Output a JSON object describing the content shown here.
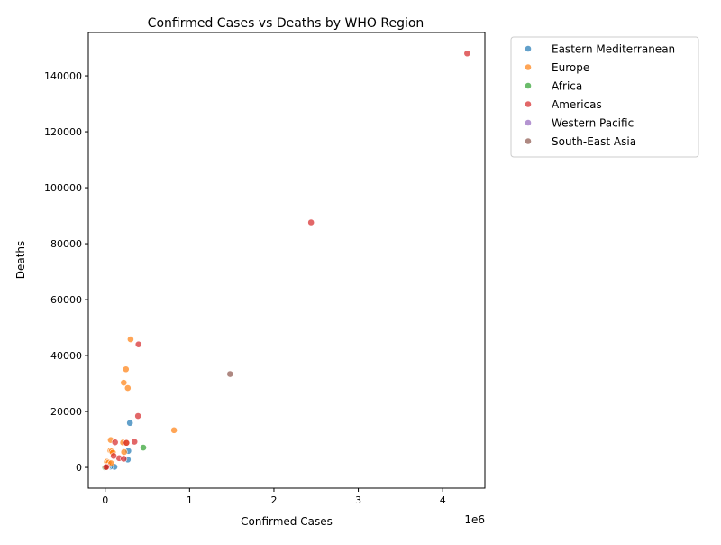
{
  "chart_data": {
    "type": "scatter",
    "title": "Confirmed Cases vs Deaths by WHO Region",
    "xlabel": "Confirmed Cases",
    "ylabel": "Deaths",
    "x_offset_label": "1e6",
    "xlim": [
      -200000,
      4500000
    ],
    "ylim": [
      -7400,
      155500
    ],
    "x_ticks": [
      0,
      1000000,
      2000000,
      3000000,
      4000000
    ],
    "x_tick_labels": [
      "0",
      "1",
      "2",
      "3",
      "4"
    ],
    "y_ticks": [
      0,
      20000,
      40000,
      60000,
      80000,
      100000,
      120000,
      140000
    ],
    "y_tick_labels": [
      "0",
      "20000",
      "40000",
      "60000",
      "80000",
      "100000",
      "120000",
      "140000"
    ],
    "grid": false,
    "legend_position": "outside-top-right",
    "series": [
      {
        "name": "Eastern Mediterranean",
        "color": "#1f77b4",
        "points": [
          [
            293000,
            15900
          ],
          [
            274000,
            5900
          ],
          [
            268000,
            2800
          ],
          [
            110000,
            200
          ],
          [
            60000,
            300
          ],
          [
            40000,
            500
          ],
          [
            20000,
            300
          ],
          [
            10000,
            100
          ],
          [
            5000,
            50
          ]
        ]
      },
      {
        "name": "Europe",
        "color": "#ff7f0e",
        "points": [
          [
            816000,
            13300
          ],
          [
            301000,
            45800
          ],
          [
            246000,
            35100
          ],
          [
            220000,
            30300
          ],
          [
            268000,
            28400
          ],
          [
            66000,
            9800
          ],
          [
            212000,
            8900
          ],
          [
            253000,
            8800
          ],
          [
            62000,
            6000
          ],
          [
            76000,
            5700
          ],
          [
            91000,
            5300
          ],
          [
            224000,
            5500
          ],
          [
            20000,
            2000
          ],
          [
            40000,
            1700
          ],
          [
            70000,
            1500
          ],
          [
            10000,
            200
          ],
          [
            5000,
            100
          ]
        ]
      },
      {
        "name": "Africa",
        "color": "#2ca02c",
        "points": [
          [
            452000,
            7100
          ],
          [
            5000,
            100
          ],
          [
            10000,
            200
          ],
          [
            2000,
            50
          ],
          [
            500,
            10
          ]
        ]
      },
      {
        "name": "Americas",
        "color": "#d62728",
        "points": [
          [
            4290000,
            148000
          ],
          [
            2440000,
            87600
          ],
          [
            395000,
            44000
          ],
          [
            389000,
            18400
          ],
          [
            347000,
            9200
          ],
          [
            117000,
            9000
          ],
          [
            252000,
            8800
          ],
          [
            165000,
            3300
          ],
          [
            220000,
            3100
          ],
          [
            100000,
            4100
          ],
          [
            20000,
            300
          ],
          [
            10000,
            100
          ]
        ]
      },
      {
        "name": "Western Pacific",
        "color": "#9467bd",
        "points": []
      },
      {
        "name": "South-East Asia",
        "color": "#8c564b",
        "points": [
          [
            1480000,
            33400
          ]
        ]
      }
    ]
  }
}
